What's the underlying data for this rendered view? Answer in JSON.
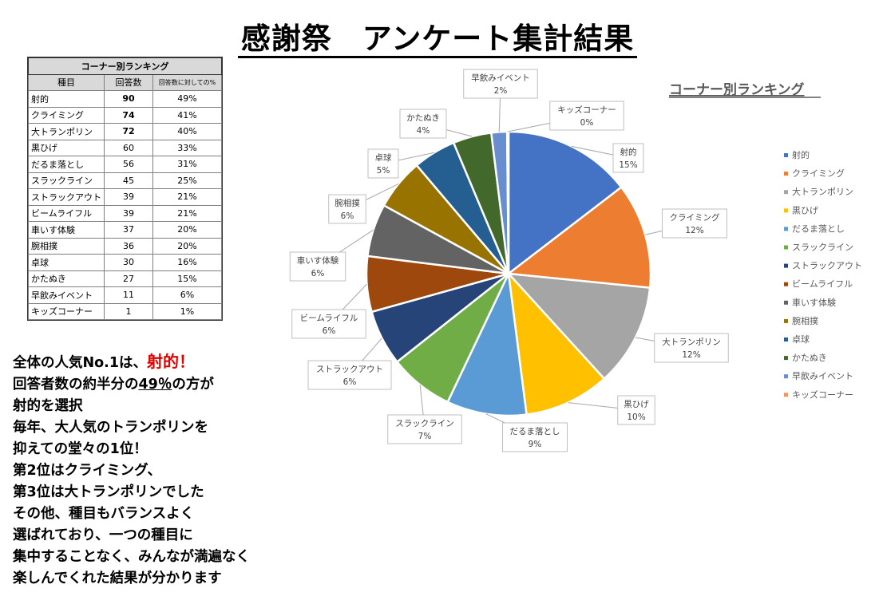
{
  "title": "感謝祭　アンケート集計結果",
  "table": {
    "caption": "コーナー別ランキング",
    "headers": [
      "種目",
      "回答数",
      "回答数に対しての%"
    ],
    "rows": [
      {
        "name": "射的",
        "count": "90",
        "pct": "49%"
      },
      {
        "name": "クライミング",
        "count": "74",
        "pct": "41%"
      },
      {
        "name": "大トランポリン",
        "count": "72",
        "pct": "40%"
      },
      {
        "name": "黒ひげ",
        "count": "60",
        "pct": "33%"
      },
      {
        "name": "だるま落とし",
        "count": "56",
        "pct": "31%"
      },
      {
        "name": "スラックライン",
        "count": "45",
        "pct": "25%"
      },
      {
        "name": "ストラックアウト",
        "count": "39",
        "pct": "21%"
      },
      {
        "name": "ビームライフル",
        "count": "39",
        "pct": "21%"
      },
      {
        "name": "車いす体験",
        "count": "37",
        "pct": "20%"
      },
      {
        "name": "腕相撲",
        "count": "36",
        "pct": "20%"
      },
      {
        "name": "卓球",
        "count": "30",
        "pct": "16%"
      },
      {
        "name": "かたぬき",
        "count": "27",
        "pct": "15%"
      },
      {
        "name": "早飲みイベント",
        "count": "11",
        "pct": "6%"
      },
      {
        "name": "キッズコーナー",
        "count": "1",
        "pct": "1%"
      }
    ]
  },
  "summary": {
    "line1_a": "全体の人気No.1は、",
    "line1_b": "射的！",
    "line2_a": "回答者数の約半分の",
    "line2_b": "49％",
    "line2_c": "の方が",
    "line3": "射的を選択",
    "line4": "毎年、大人気のトランポリンを",
    "line5": "抑えての堂々の1位！",
    "line6": "第2位はクライミング、",
    "line7": "第3位は大トランポリンでした",
    "line8": "その他、種目もバランスよく",
    "line9": "選ばれており、一つの種目に",
    "line10": "集中することなく、みんなが満遍なく",
    "line11": "楽しんでくれた結果が分かります"
  },
  "chart_data": {
    "type": "pie",
    "title": "コーナー別ランキング",
    "legend_position": "right",
    "slices": [
      {
        "name": "射的",
        "value": 90,
        "label": "15%",
        "color": "#4472c4"
      },
      {
        "name": "クライミング",
        "value": 74,
        "label": "12%",
        "color": "#ed7d31"
      },
      {
        "name": "大トランポリン",
        "value": 72,
        "label": "12%",
        "color": "#a5a5a5"
      },
      {
        "name": "黒ひげ",
        "value": 60,
        "label": "10%",
        "color": "#ffc000"
      },
      {
        "name": "だるま落とし",
        "value": 56,
        "label": "9%",
        "color": "#5b9bd5"
      },
      {
        "name": "スラックライン",
        "value": 45,
        "label": "7%",
        "color": "#70ad47"
      },
      {
        "name": "ストラックアウト",
        "value": 39,
        "label": "6%",
        "color": "#264478"
      },
      {
        "name": "ビームライフル",
        "value": 39,
        "label": "6%",
        "color": "#9e480e"
      },
      {
        "name": "車いす体験",
        "value": 37,
        "label": "6%",
        "color": "#636363"
      },
      {
        "name": "腕相撲",
        "value": 36,
        "label": "6%",
        "color": "#997300"
      },
      {
        "name": "卓球",
        "value": 30,
        "label": "5%",
        "color": "#255e91"
      },
      {
        "name": "かたぬき",
        "value": 27,
        "label": "4%",
        "color": "#43682b"
      },
      {
        "name": "早飲みイベント",
        "value": 11,
        "label": "2%",
        "color": "#698ed0"
      },
      {
        "name": "キッズコーナー",
        "value": 1,
        "label": "0%",
        "color": "#f1975a"
      }
    ]
  }
}
